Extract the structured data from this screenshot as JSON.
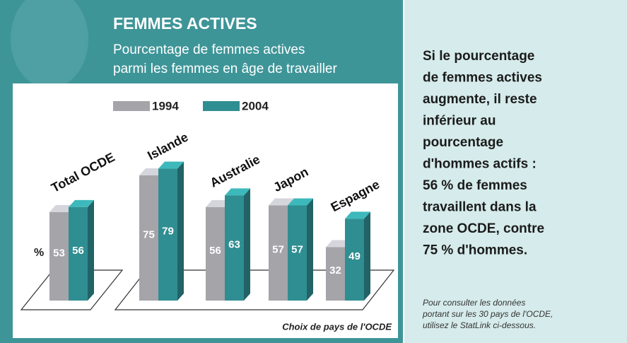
{
  "chart_data": {
    "type": "bar3d",
    "title": "FEMMES ACTIVES",
    "subtitle": [
      "Pourcentage de femmes actives",
      "parmi les femmes en âge de travailler"
    ],
    "y_label": "%",
    "footnote": "Choix de pays de l'OCDE",
    "categories": [
      "Total OCDE",
      "Islande",
      "Australie",
      "Japon",
      "Espagne"
    ],
    "series": [
      {
        "name": "1994",
        "color": "#a4a4a9",
        "values": [
          53,
          75,
          56,
          57,
          32
        ]
      },
      {
        "name": "2004",
        "color": "#2f8e91",
        "values": [
          56,
          79,
          63,
          57,
          49
        ]
      }
    ]
  },
  "sidebar": {
    "text": [
      "Si le pourcentage",
      "de femmes actives",
      "augmente, il reste",
      "inférieur au",
      "pourcentage",
      "d'hommes actifs :",
      "56 % de femmes",
      "travaillent dans la",
      "zone OCDE, contre",
      "75 % d'hommes."
    ],
    "note": [
      "Pour consulter les données",
      "portant sur les 30 pays de l'OCDE,",
      "utilisez le StatLink ci-dessous."
    ]
  }
}
